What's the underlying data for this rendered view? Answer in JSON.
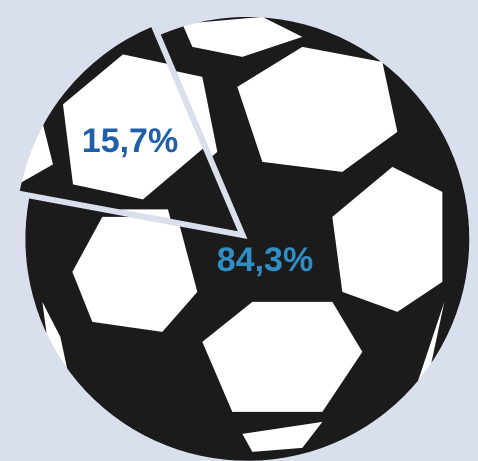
{
  "chart_data": {
    "type": "pie",
    "values": [
      15.7,
      84.3
    ],
    "value_labels": [
      "15,7%",
      "84,3%"
    ],
    "colors": [
      "#1b1b1b",
      "#1b1b1b"
    ]
  }
}
